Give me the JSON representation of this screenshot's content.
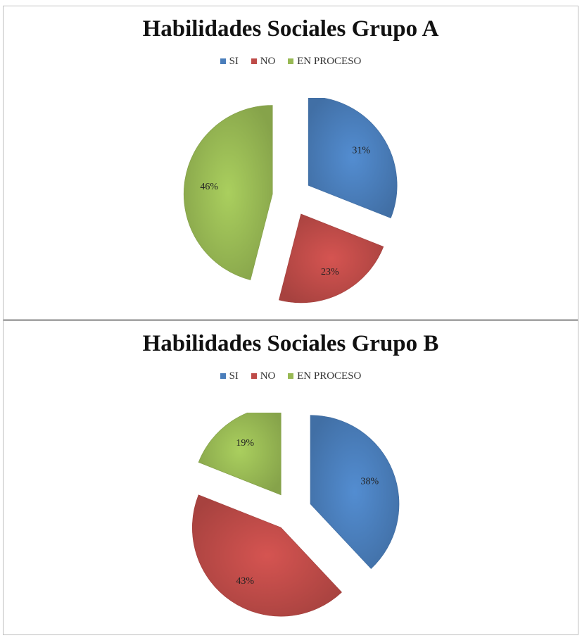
{
  "colors": {
    "si": "#4a7ebb",
    "no": "#be4b48",
    "en_proceso": "#98b954"
  },
  "chart_data": [
    {
      "type": "pie",
      "title": "Habilidades Sociales Grupo A",
      "legend": [
        "SI",
        "NO",
        "EN PROCESO"
      ],
      "legend_position": "top",
      "slices": [
        {
          "name": "SI",
          "value": 31,
          "label": "31%"
        },
        {
          "name": "NO",
          "value": 23,
          "label": "23%"
        },
        {
          "name": "EN PROCESO",
          "value": 46,
          "label": "46%"
        }
      ],
      "exploded": true
    },
    {
      "type": "pie",
      "title": "Habilidades Sociales Grupo B",
      "legend": [
        "SI",
        "NO",
        "EN PROCESO"
      ],
      "legend_position": "top",
      "slices": [
        {
          "name": "SI",
          "value": 38,
          "label": "38%"
        },
        {
          "name": "NO",
          "value": 43,
          "label": "43%"
        },
        {
          "name": "EN PROCESO",
          "value": 19,
          "label": "19%"
        }
      ],
      "exploded": true
    }
  ]
}
